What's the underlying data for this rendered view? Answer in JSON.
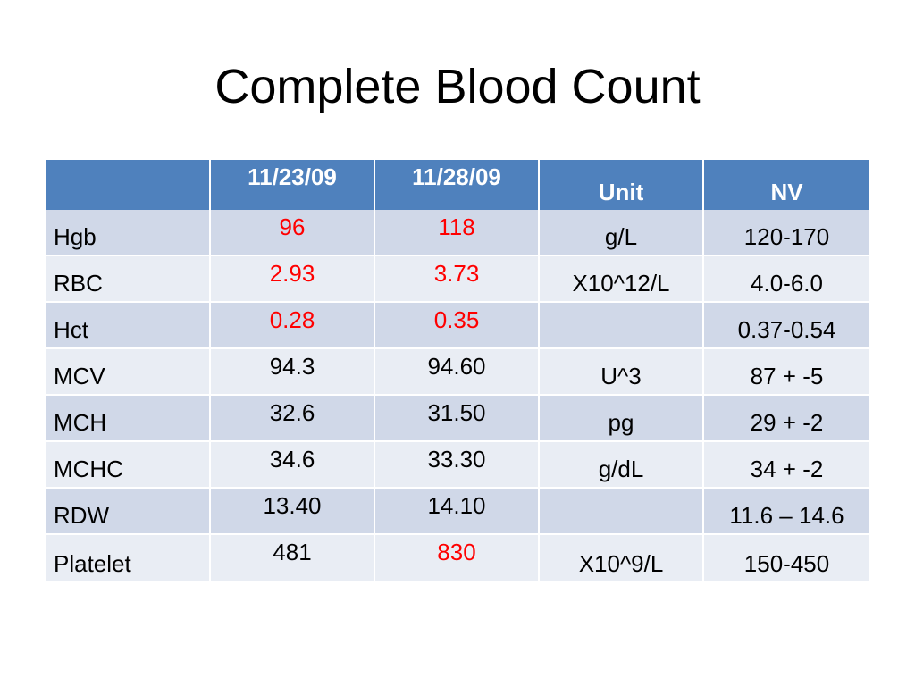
{
  "title": "Complete Blood Count",
  "table": {
    "headers": [
      "",
      "11/23/09",
      "11/28/09",
      "Unit",
      "NV"
    ],
    "rows": [
      {
        "name": "Hgb",
        "v1": "96",
        "v2": "118",
        "unit": "g/L",
        "nv": "120-170"
      },
      {
        "name": "RBC",
        "v1": "2.93",
        "v2": "3.73",
        "unit": "X10^12/L",
        "nv": "4.0-6.0"
      },
      {
        "name": "Hct",
        "v1": "0.28",
        "v2": "0.35",
        "unit": "",
        "nv": "0.37-0.54"
      },
      {
        "name": "MCV",
        "v1": "94.3",
        "v2": "94.60",
        "unit": "U^3",
        "nv": "87 + -5"
      },
      {
        "name": "MCH",
        "v1": "32.6",
        "v2": "31.50",
        "unit": "pg",
        "nv": "29 + -2"
      },
      {
        "name": "MCHC",
        "v1": "34.6",
        "v2": "33.30",
        "unit": "g/dL",
        "nv": "34 + -2"
      },
      {
        "name": "RDW",
        "v1": "13.40",
        "v2": "14.10",
        "unit": "",
        "nv": "11.6 – 14.6"
      },
      {
        "name": "Platelet",
        "v1": "481",
        "v2": "830",
        "unit": "X10^9/L",
        "nv": "150-450"
      }
    ]
  },
  "colors": {
    "header_bg": "#4f81bd",
    "row_dark": "#d0d8e8",
    "row_light": "#e9edf4",
    "abnormal_text": "#ff0000"
  }
}
